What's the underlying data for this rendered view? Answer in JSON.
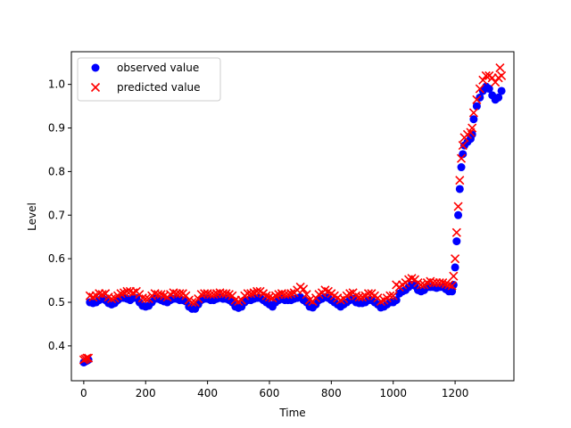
{
  "chart_data": {
    "type": "scatter",
    "title": "",
    "xlabel": "Time",
    "ylabel": "Level",
    "xlim": [
      -40,
      1390
    ],
    "ylim": [
      0.32,
      1.075
    ],
    "xticks": [
      0,
      200,
      400,
      600,
      800,
      1000,
      1200
    ],
    "yticks": [
      0.4,
      0.5,
      0.6,
      0.7,
      0.8,
      0.9,
      1.0
    ],
    "xtick_labels": [
      "0",
      "200",
      "400",
      "600",
      "800",
      "1000",
      "1200"
    ],
    "ytick_labels": [
      "0.4",
      "0.5",
      "0.6",
      "0.7",
      "0.8",
      "0.9",
      "1.0"
    ],
    "legend_position": "top-left",
    "grid": false,
    "series": [
      {
        "name": "observed value",
        "marker": "circle",
        "color": "#0000ff",
        "points": [
          [
            0,
            0.362
          ],
          [
            5,
            0.364
          ],
          [
            10,
            0.366
          ],
          [
            15,
            0.368
          ],
          [
            20,
            0.5
          ],
          [
            30,
            0.498
          ],
          [
            40,
            0.5
          ],
          [
            50,
            0.505
          ],
          [
            60,
            0.51
          ],
          [
            70,
            0.505
          ],
          [
            80,
            0.498
          ],
          [
            90,
            0.495
          ],
          [
            100,
            0.498
          ],
          [
            110,
            0.505
          ],
          [
            120,
            0.51
          ],
          [
            130,
            0.51
          ],
          [
            140,
            0.508
          ],
          [
            150,
            0.505
          ],
          [
            160,
            0.51
          ],
          [
            170,
            0.51
          ],
          [
            180,
            0.5
          ],
          [
            190,
            0.492
          ],
          [
            200,
            0.49
          ],
          [
            210,
            0.492
          ],
          [
            220,
            0.5
          ],
          [
            230,
            0.508
          ],
          [
            240,
            0.508
          ],
          [
            250,
            0.505
          ],
          [
            260,
            0.502
          ],
          [
            270,
            0.5
          ],
          [
            280,
            0.505
          ],
          [
            290,
            0.508
          ],
          [
            300,
            0.508
          ],
          [
            310,
            0.505
          ],
          [
            320,
            0.505
          ],
          [
            330,
            0.502
          ],
          [
            340,
            0.49
          ],
          [
            350,
            0.485
          ],
          [
            360,
            0.485
          ],
          [
            370,
            0.495
          ],
          [
            380,
            0.505
          ],
          [
            390,
            0.508
          ],
          [
            400,
            0.508
          ],
          [
            410,
            0.505
          ],
          [
            420,
            0.505
          ],
          [
            430,
            0.508
          ],
          [
            440,
            0.51
          ],
          [
            450,
            0.508
          ],
          [
            460,
            0.508
          ],
          [
            470,
            0.505
          ],
          [
            480,
            0.5
          ],
          [
            490,
            0.49
          ],
          [
            500,
            0.487
          ],
          [
            510,
            0.49
          ],
          [
            520,
            0.5
          ],
          [
            530,
            0.505
          ],
          [
            540,
            0.505
          ],
          [
            550,
            0.508
          ],
          [
            560,
            0.51
          ],
          [
            570,
            0.51
          ],
          [
            580,
            0.505
          ],
          [
            590,
            0.5
          ],
          [
            600,
            0.495
          ],
          [
            610,
            0.49
          ],
          [
            620,
            0.5
          ],
          [
            630,
            0.505
          ],
          [
            640,
            0.508
          ],
          [
            650,
            0.505
          ],
          [
            660,
            0.505
          ],
          [
            670,
            0.505
          ],
          [
            680,
            0.508
          ],
          [
            690,
            0.51
          ],
          [
            700,
            0.512
          ],
          [
            710,
            0.505
          ],
          [
            720,
            0.5
          ],
          [
            730,
            0.49
          ],
          [
            740,
            0.488
          ],
          [
            750,
            0.495
          ],
          [
            760,
            0.505
          ],
          [
            770,
            0.508
          ],
          [
            780,
            0.512
          ],
          [
            790,
            0.51
          ],
          [
            800,
            0.505
          ],
          [
            810,
            0.5
          ],
          [
            820,
            0.495
          ],
          [
            830,
            0.49
          ],
          [
            840,
            0.495
          ],
          [
            850,
            0.5
          ],
          [
            860,
            0.505
          ],
          [
            870,
            0.508
          ],
          [
            880,
            0.5
          ],
          [
            890,
            0.498
          ],
          [
            900,
            0.498
          ],
          [
            910,
            0.5
          ],
          [
            920,
            0.505
          ],
          [
            930,
            0.505
          ],
          [
            940,
            0.5
          ],
          [
            950,
            0.495
          ],
          [
            960,
            0.488
          ],
          [
            970,
            0.49
          ],
          [
            980,
            0.495
          ],
          [
            990,
            0.5
          ],
          [
            1000,
            0.5
          ],
          [
            1010,
            0.505
          ],
          [
            1020,
            0.52
          ],
          [
            1030,
            0.525
          ],
          [
            1040,
            0.528
          ],
          [
            1050,
            0.535
          ],
          [
            1060,
            0.54
          ],
          [
            1070,
            0.538
          ],
          [
            1080,
            0.528
          ],
          [
            1090,
            0.525
          ],
          [
            1100,
            0.528
          ],
          [
            1110,
            0.535
          ],
          [
            1120,
            0.535
          ],
          [
            1130,
            0.535
          ],
          [
            1140,
            0.533
          ],
          [
            1150,
            0.535
          ],
          [
            1160,
            0.535
          ],
          [
            1170,
            0.53
          ],
          [
            1180,
            0.525
          ],
          [
            1190,
            0.525
          ],
          [
            1195,
            0.54
          ],
          [
            1200,
            0.58
          ],
          [
            1205,
            0.64
          ],
          [
            1210,
            0.7
          ],
          [
            1215,
            0.76
          ],
          [
            1220,
            0.81
          ],
          [
            1225,
            0.84
          ],
          [
            1230,
            0.86
          ],
          [
            1240,
            0.868
          ],
          [
            1250,
            0.875
          ],
          [
            1255,
            0.885
          ],
          [
            1260,
            0.92
          ],
          [
            1270,
            0.95
          ],
          [
            1280,
            0.97
          ],
          [
            1290,
            0.985
          ],
          [
            1300,
            0.995
          ],
          [
            1310,
            0.99
          ],
          [
            1320,
            0.975
          ],
          [
            1330,
            0.965
          ],
          [
            1340,
            0.97
          ],
          [
            1350,
            0.985
          ]
        ]
      },
      {
        "name": "predicted value",
        "marker": "x",
        "color": "#ff0000",
        "points": [
          [
            0,
            0.368
          ],
          [
            5,
            0.37
          ],
          [
            10,
            0.372
          ],
          [
            15,
            0.372
          ],
          [
            20,
            0.515
          ],
          [
            30,
            0.512
          ],
          [
            40,
            0.515
          ],
          [
            50,
            0.52
          ],
          [
            60,
            0.518
          ],
          [
            70,
            0.52
          ],
          [
            80,
            0.512
          ],
          [
            90,
            0.508
          ],
          [
            100,
            0.51
          ],
          [
            110,
            0.515
          ],
          [
            120,
            0.52
          ],
          [
            130,
            0.522
          ],
          [
            140,
            0.525
          ],
          [
            150,
            0.525
          ],
          [
            160,
            0.522
          ],
          [
            170,
            0.525
          ],
          [
            180,
            0.518
          ],
          [
            190,
            0.51
          ],
          [
            200,
            0.508
          ],
          [
            210,
            0.508
          ],
          [
            220,
            0.515
          ],
          [
            230,
            0.52
          ],
          [
            240,
            0.518
          ],
          [
            250,
            0.518
          ],
          [
            260,
            0.515
          ],
          [
            270,
            0.512
          ],
          [
            280,
            0.518
          ],
          [
            290,
            0.522
          ],
          [
            300,
            0.52
          ],
          [
            310,
            0.52
          ],
          [
            320,
            0.52
          ],
          [
            330,
            0.515
          ],
          [
            340,
            0.505
          ],
          [
            350,
            0.5
          ],
          [
            360,
            0.5
          ],
          [
            370,
            0.508
          ],
          [
            380,
            0.518
          ],
          [
            390,
            0.52
          ],
          [
            400,
            0.52
          ],
          [
            410,
            0.518
          ],
          [
            420,
            0.518
          ],
          [
            430,
            0.52
          ],
          [
            440,
            0.522
          ],
          [
            450,
            0.52
          ],
          [
            460,
            0.52
          ],
          [
            470,
            0.518
          ],
          [
            480,
            0.515
          ],
          [
            490,
            0.505
          ],
          [
            500,
            0.502
          ],
          [
            510,
            0.505
          ],
          [
            520,
            0.515
          ],
          [
            530,
            0.52
          ],
          [
            540,
            0.52
          ],
          [
            550,
            0.522
          ],
          [
            560,
            0.525
          ],
          [
            570,
            0.525
          ],
          [
            580,
            0.52
          ],
          [
            590,
            0.515
          ],
          [
            600,
            0.512
          ],
          [
            610,
            0.51
          ],
          [
            620,
            0.515
          ],
          [
            630,
            0.518
          ],
          [
            640,
            0.52
          ],
          [
            650,
            0.518
          ],
          [
            660,
            0.518
          ],
          [
            670,
            0.52
          ],
          [
            680,
            0.522
          ],
          [
            690,
            0.528
          ],
          [
            700,
            0.535
          ],
          [
            710,
            0.53
          ],
          [
            720,
            0.518
          ],
          [
            730,
            0.505
          ],
          [
            740,
            0.502
          ],
          [
            750,
            0.51
          ],
          [
            760,
            0.518
          ],
          [
            770,
            0.522
          ],
          [
            780,
            0.528
          ],
          [
            790,
            0.525
          ],
          [
            800,
            0.52
          ],
          [
            810,
            0.515
          ],
          [
            820,
            0.51
          ],
          [
            830,
            0.505
          ],
          [
            840,
            0.508
          ],
          [
            850,
            0.515
          ],
          [
            860,
            0.52
          ],
          [
            870,
            0.522
          ],
          [
            880,
            0.515
          ],
          [
            890,
            0.512
          ],
          [
            900,
            0.512
          ],
          [
            910,
            0.515
          ],
          [
            920,
            0.52
          ],
          [
            930,
            0.52
          ],
          [
            940,
            0.515
          ],
          [
            950,
            0.51
          ],
          [
            960,
            0.502
          ],
          [
            970,
            0.505
          ],
          [
            980,
            0.51
          ],
          [
            990,
            0.515
          ],
          [
            1000,
            0.515
          ],
          [
            1010,
            0.54
          ],
          [
            1020,
            0.535
          ],
          [
            1030,
            0.54
          ],
          [
            1040,
            0.545
          ],
          [
            1050,
            0.552
          ],
          [
            1060,
            0.555
          ],
          [
            1070,
            0.552
          ],
          [
            1080,
            0.545
          ],
          [
            1090,
            0.54
          ],
          [
            1100,
            0.54
          ],
          [
            1110,
            0.545
          ],
          [
            1120,
            0.548
          ],
          [
            1130,
            0.545
          ],
          [
            1140,
            0.545
          ],
          [
            1150,
            0.545
          ],
          [
            1160,
            0.545
          ],
          [
            1170,
            0.542
          ],
          [
            1180,
            0.54
          ],
          [
            1190,
            0.538
          ],
          [
            1195,
            0.56
          ],
          [
            1200,
            0.6
          ],
          [
            1205,
            0.66
          ],
          [
            1210,
            0.72
          ],
          [
            1215,
            0.78
          ],
          [
            1220,
            0.83
          ],
          [
            1225,
            0.86
          ],
          [
            1230,
            0.878
          ],
          [
            1240,
            0.885
          ],
          [
            1250,
            0.89
          ],
          [
            1255,
            0.9
          ],
          [
            1260,
            0.935
          ],
          [
            1270,
            0.965
          ],
          [
            1280,
            0.99
          ],
          [
            1290,
            1.01
          ],
          [
            1300,
            1.02
          ],
          [
            1310,
            1.02
          ],
          [
            1320,
            1.015
          ],
          [
            1330,
            1.005
          ],
          [
            1340,
            1.015
          ],
          [
            1345,
            1.038
          ],
          [
            1350,
            1.02
          ]
        ]
      }
    ]
  }
}
